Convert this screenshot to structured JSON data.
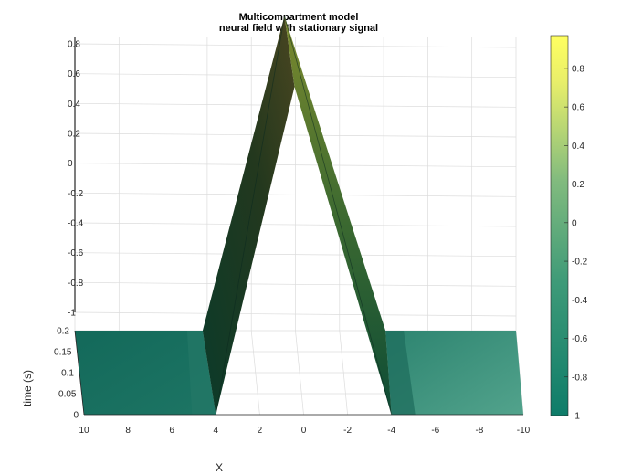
{
  "chart_data": {
    "type": "surface",
    "title": [
      "Multicompartment model",
      "neural field with stationary signal"
    ],
    "xlabel": "X",
    "ylabel": "time (s)",
    "xlim": [
      -10,
      10
    ],
    "xdir": "reverse",
    "xticks": [
      "10",
      "8",
      "6",
      "4",
      "2",
      "0",
      "-2",
      "-4",
      "-6",
      "-8",
      "-10"
    ],
    "ylim": [
      0,
      0.2
    ],
    "yticks": [
      "0",
      "0.05",
      "0.1",
      "0.15",
      "0.2"
    ],
    "zlim": [
      -1,
      0.8
    ],
    "zticks": [
      "-1",
      "-0.8",
      "-0.6",
      "-0.4",
      "-0.2",
      "0",
      "0.2",
      "0.4",
      "0.6",
      "0.8"
    ],
    "grid": true,
    "colormap": [
      "#0e7c69",
      "#3e9a78",
      "#82bb7e",
      "#f0f26a",
      "#ffff60"
    ],
    "colorbar": {
      "range": [
        -1,
        0.97
      ],
      "ticks": [
        "0.8",
        "0.6",
        "0.4",
        "0.2",
        "0",
        "-0.2",
        "-0.4",
        "-0.6",
        "-0.8",
        "-1"
      ]
    },
    "series": [
      {
        "x": [
          -10,
          -4,
          0,
          4,
          10
        ],
        "value": [
          -0.99,
          -0.99,
          0.95,
          -0.99,
          -0.99
        ]
      }
    ]
  }
}
